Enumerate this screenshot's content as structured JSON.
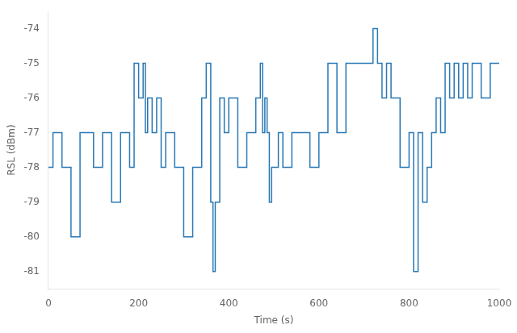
{
  "chart_data": {
    "type": "line",
    "xlabel": "Time (s)",
    "ylabel": "RSL (dBm)",
    "color": "#2878b5",
    "xlim": [
      0,
      1000
    ],
    "ylim": [
      -81.5,
      -73.5
    ],
    "xticks": [
      0,
      200,
      400,
      600,
      800,
      1000
    ],
    "yticks": [
      -81,
      -80,
      -79,
      -78,
      -77,
      -76,
      -75,
      -74
    ],
    "grid": false,
    "x": [
      0,
      10,
      10,
      30,
      30,
      50,
      50,
      70,
      70,
      100,
      100,
      120,
      120,
      140,
      140,
      160,
      160,
      180,
      180,
      190,
      190,
      200,
      200,
      210,
      210,
      215,
      215,
      220,
      220,
      230,
      230,
      240,
      240,
      250,
      250,
      260,
      260,
      280,
      280,
      300,
      300,
      320,
      320,
      340,
      340,
      350,
      350,
      360,
      360,
      365,
      365,
      370,
      370,
      380,
      380,
      390,
      390,
      400,
      400,
      420,
      420,
      440,
      440,
      460,
      460,
      470,
      470,
      475,
      475,
      480,
      480,
      485,
      485,
      490,
      490,
      495,
      495,
      500,
      500,
      510,
      510,
      520,
      520,
      540,
      540,
      560,
      560,
      580,
      580,
      600,
      600,
      620,
      620,
      640,
      640,
      660,
      660,
      680,
      680,
      700,
      700,
      720,
      720,
      730,
      730,
      740,
      740,
      750,
      750,
      760,
      760,
      780,
      780,
      800,
      800,
      810,
      810,
      820,
      820,
      830,
      830,
      840,
      840,
      850,
      850,
      860,
      860,
      870,
      870,
      880,
      880,
      890,
      890,
      900,
      900,
      910,
      910,
      920,
      920,
      930,
      930,
      940,
      940,
      960,
      960,
      980,
      980,
      1000
    ],
    "values": [
      -78,
      -78,
      -77,
      -77,
      -78,
      -78,
      -80,
      -80,
      -77,
      -77,
      -78,
      -78,
      -77,
      -77,
      -79,
      -79,
      -77,
      -77,
      -78,
      -78,
      -75,
      -75,
      -76,
      -76,
      -75,
      -75,
      -77,
      -77,
      -76,
      -76,
      -77,
      -77,
      -76,
      -76,
      -78,
      -78,
      -77,
      -77,
      -78,
      -78,
      -80,
      -80,
      -78,
      -78,
      -76,
      -76,
      -75,
      -75,
      -79,
      -79,
      -81,
      -81,
      -79,
      -79,
      -76,
      -76,
      -77,
      -77,
      -76,
      -76,
      -78,
      -78,
      -77,
      -77,
      -76,
      -76,
      -75,
      -75,
      -77,
      -77,
      -76,
      -76,
      -77,
      -77,
      -79,
      -79,
      -78,
      -78,
      -78,
      -78,
      -77,
      -77,
      -78,
      -78,
      -77,
      -77,
      -77,
      -77,
      -78,
      -78,
      -77,
      -77,
      -75,
      -75,
      -77,
      -77,
      -75,
      -75,
      -75,
      -75,
      -75,
      -75,
      -74,
      -74,
      -75,
      -75,
      -76,
      -76,
      -75,
      -75,
      -76,
      -76,
      -78,
      -78,
      -77,
      -77,
      -81,
      -81,
      -77,
      -77,
      -79,
      -79,
      -78,
      -78,
      -77,
      -77,
      -76,
      -76,
      -77,
      -77,
      -75,
      -75,
      -76,
      -76,
      -75,
      -75,
      -76,
      -76,
      -75,
      -75,
      -76,
      -76,
      -75,
      -75,
      -76,
      -76,
      -75,
      -75
    ]
  }
}
